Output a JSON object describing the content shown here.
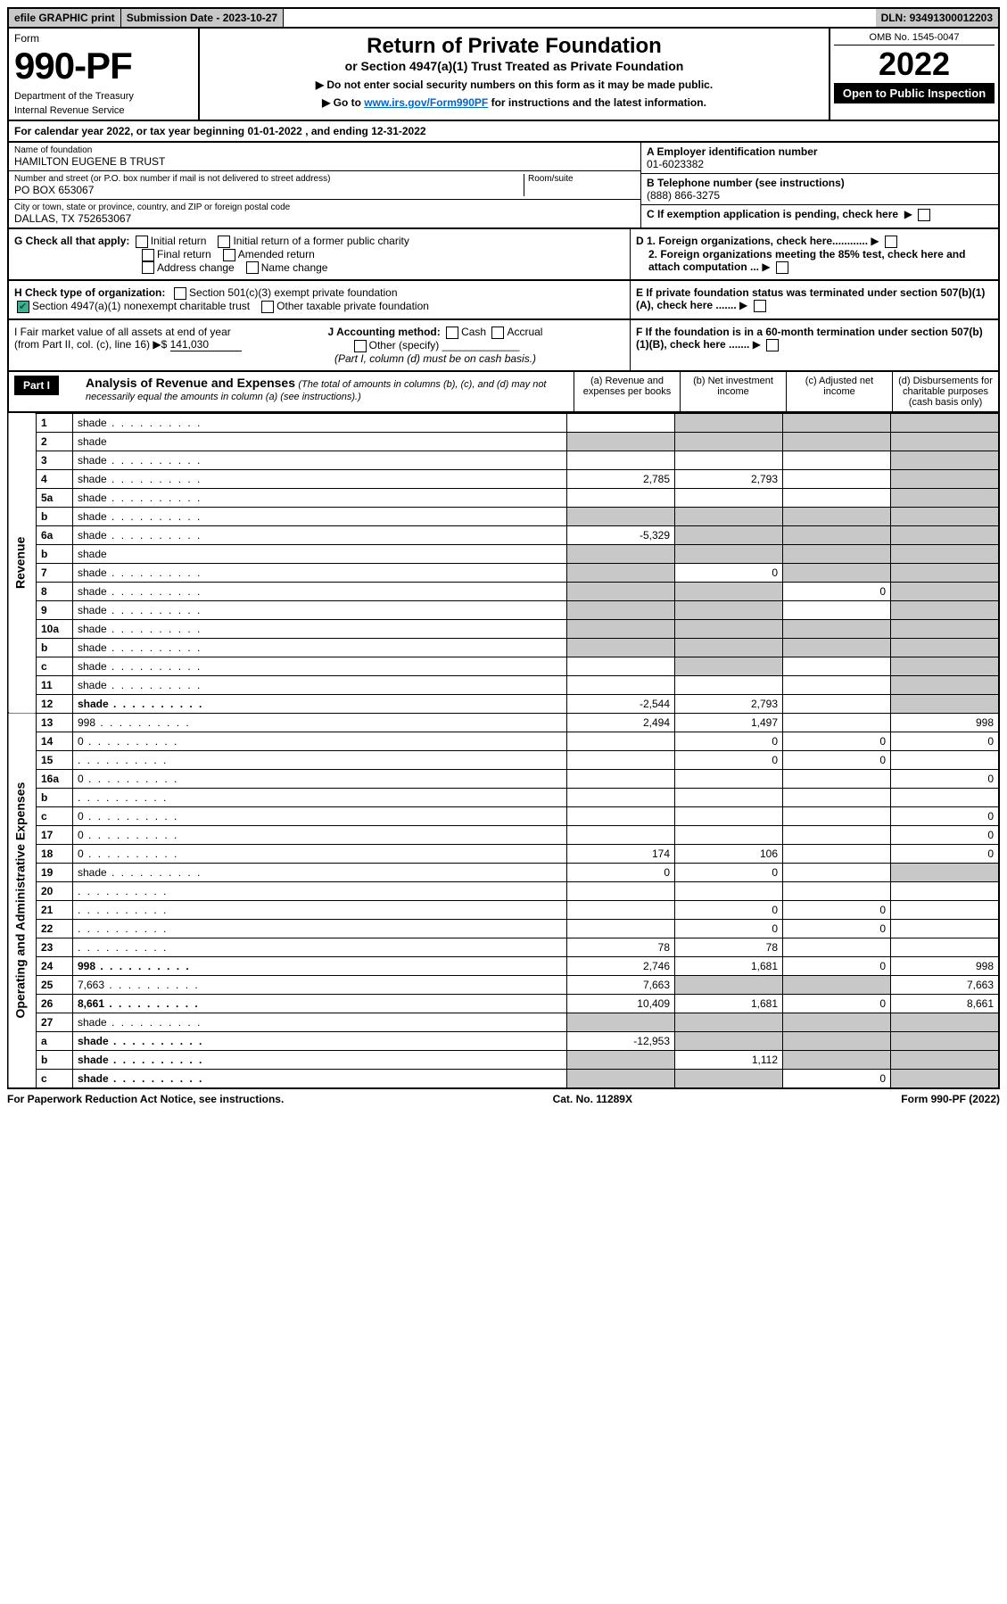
{
  "top": {
    "efile": "efile GRAPHIC print",
    "subdate_label": "Submission Date - ",
    "subdate": "2023-10-27",
    "dln_label": "DLN: ",
    "dln": "93491300012203"
  },
  "header": {
    "form_word": "Form",
    "form_num": "990-PF",
    "dept1": "Department of the Treasury",
    "dept2": "Internal Revenue Service",
    "title": "Return of Private Foundation",
    "subtitle": "or Section 4947(a)(1) Trust Treated as Private Foundation",
    "note1": "▶ Do not enter social security numbers on this form as it may be made public.",
    "note2_pre": "▶ Go to ",
    "note2_link": "www.irs.gov/Form990PF",
    "note2_post": " for instructions and the latest information.",
    "omb": "OMB No. 1545-0047",
    "year": "2022",
    "open": "Open to Public Inspection"
  },
  "cal": {
    "text_pre": "For calendar year 2022, or tax year beginning ",
    "begin": "01-01-2022",
    "text_mid": " , and ending ",
    "end": "12-31-2022"
  },
  "info": {
    "name_label": "Name of foundation",
    "name": "HAMILTON EUGENE B TRUST",
    "addr_label": "Number and street (or P.O. box number if mail is not delivered to street address)",
    "addr": "PO BOX 653067",
    "room_label": "Room/suite",
    "city_label": "City or town, state or province, country, and ZIP or foreign postal code",
    "city": "DALLAS, TX  752653067",
    "a_label": "A Employer identification number",
    "a_val": "01-6023382",
    "b_label": "B Telephone number (see instructions)",
    "b_val": "(888) 866-3275",
    "c_label": "C If exemption application is pending, check here",
    "d1": "D 1. Foreign organizations, check here............",
    "d2": "2. Foreign organizations meeting the 85% test, check here and attach computation ...",
    "e": "E  If private foundation status was terminated under section 507(b)(1)(A), check here .......",
    "f": "F  If the foundation is in a 60-month termination under section 507(b)(1)(B), check here .......",
    "g_label": "G Check all that apply:",
    "g_opts": [
      "Initial return",
      "Initial return of a former public charity",
      "Final return",
      "Amended return",
      "Address change",
      "Name change"
    ],
    "h_label": "H Check type of organization:",
    "h1": "Section 501(c)(3) exempt private foundation",
    "h2": "Section 4947(a)(1) nonexempt charitable trust",
    "h3": "Other taxable private foundation",
    "i_label": "I Fair market value of all assets at end of year (from Part II, col. (c), line 16) ▶$",
    "i_val": "141,030",
    "j_label": "J Accounting method:",
    "j_cash": "Cash",
    "j_accr": "Accrual",
    "j_other": "Other (specify)",
    "j_note": "(Part I, column (d) must be on cash basis.)"
  },
  "part1": {
    "label": "Part I",
    "title": "Analysis of Revenue and Expenses",
    "note": "(The total of amounts in columns (b), (c), and (d) may not necessarily equal the amounts in column (a) (see instructions).)",
    "cols": {
      "a": "(a) Revenue and expenses per books",
      "b": "(b) Net investment income",
      "c": "(c) Adjusted net income",
      "d": "(d) Disbursements for charitable purposes (cash basis only)"
    }
  },
  "side": {
    "rev": "Revenue",
    "exp": "Operating and Administrative Expenses"
  },
  "rows": [
    {
      "n": "1",
      "d": "shade",
      "a": "",
      "b": "shade",
      "c": "shade"
    },
    {
      "n": "2",
      "d": "shade",
      "a": "shade",
      "b": "shade",
      "c": "shade",
      "dotsoff": true
    },
    {
      "n": "3",
      "d": "shade",
      "a": "",
      "b": "",
      "c": ""
    },
    {
      "n": "4",
      "d": "shade",
      "a": "2,785",
      "b": "2,793",
      "c": ""
    },
    {
      "n": "5a",
      "d": "shade",
      "a": "",
      "b": "",
      "c": ""
    },
    {
      "n": "b",
      "d": "shade",
      "a": "shade",
      "b": "shade",
      "c": "shade"
    },
    {
      "n": "6a",
      "d": "shade",
      "a": "-5,329",
      "b": "shade",
      "c": "shade"
    },
    {
      "n": "b",
      "d": "shade",
      "a": "shade",
      "b": "shade",
      "c": "shade",
      "dotsoff": true
    },
    {
      "n": "7",
      "d": "shade",
      "a": "shade",
      "b": "0",
      "c": "shade"
    },
    {
      "n": "8",
      "d": "shade",
      "a": "shade",
      "b": "shade",
      "c": "0"
    },
    {
      "n": "9",
      "d": "shade",
      "a": "shade",
      "b": "shade",
      "c": ""
    },
    {
      "n": "10a",
      "d": "shade",
      "a": "shade",
      "b": "shade",
      "c": "shade"
    },
    {
      "n": "b",
      "d": "shade",
      "a": "shade",
      "b": "shade",
      "c": "shade"
    },
    {
      "n": "c",
      "d": "shade",
      "a": "",
      "b": "shade",
      "c": ""
    },
    {
      "n": "11",
      "d": "shade",
      "a": "",
      "b": "",
      "c": ""
    },
    {
      "n": "12",
      "d": "shade",
      "a": "-2,544",
      "b": "2,793",
      "c": "",
      "bold": true
    },
    {
      "n": "13",
      "d": "998",
      "a": "2,494",
      "b": "1,497",
      "c": ""
    },
    {
      "n": "14",
      "d": "0",
      "a": "",
      "b": "0",
      "c": "0"
    },
    {
      "n": "15",
      "d": "",
      "a": "",
      "b": "0",
      "c": "0"
    },
    {
      "n": "16a",
      "d": "0",
      "a": "",
      "b": "",
      "c": ""
    },
    {
      "n": "b",
      "d": "",
      "a": "",
      "b": "",
      "c": ""
    },
    {
      "n": "c",
      "d": "0",
      "a": "",
      "b": "",
      "c": ""
    },
    {
      "n": "17",
      "d": "0",
      "a": "",
      "b": "",
      "c": ""
    },
    {
      "n": "18",
      "d": "0",
      "a": "174",
      "b": "106",
      "c": ""
    },
    {
      "n": "19",
      "d": "shade",
      "a": "0",
      "b": "0",
      "c": ""
    },
    {
      "n": "20",
      "d": "",
      "a": "",
      "b": "",
      "c": ""
    },
    {
      "n": "21",
      "d": "",
      "a": "",
      "b": "0",
      "c": "0"
    },
    {
      "n": "22",
      "d": "",
      "a": "",
      "b": "0",
      "c": "0"
    },
    {
      "n": "23",
      "d": "",
      "a": "78",
      "b": "78",
      "c": ""
    },
    {
      "n": "24",
      "d": "998",
      "a": "2,746",
      "b": "1,681",
      "c": "0",
      "bold": true
    },
    {
      "n": "25",
      "d": "7,663",
      "a": "7,663",
      "b": "shade",
      "c": "shade"
    },
    {
      "n": "26",
      "d": "8,661",
      "a": "10,409",
      "b": "1,681",
      "c": "0",
      "bold": true
    },
    {
      "n": "27",
      "d": "shade",
      "a": "shade",
      "b": "shade",
      "c": "shade"
    },
    {
      "n": "a",
      "d": "shade",
      "a": "-12,953",
      "b": "shade",
      "c": "shade",
      "bold": true
    },
    {
      "n": "b",
      "d": "shade",
      "a": "shade",
      "b": "1,112",
      "c": "shade",
      "bold": true
    },
    {
      "n": "c",
      "d": "shade",
      "a": "shade",
      "b": "shade",
      "c": "0",
      "bold": true
    }
  ],
  "footer": {
    "left": "For Paperwork Reduction Act Notice, see instructions.",
    "mid": "Cat. No. 11289X",
    "right": "Form 990-PF (2022)"
  }
}
